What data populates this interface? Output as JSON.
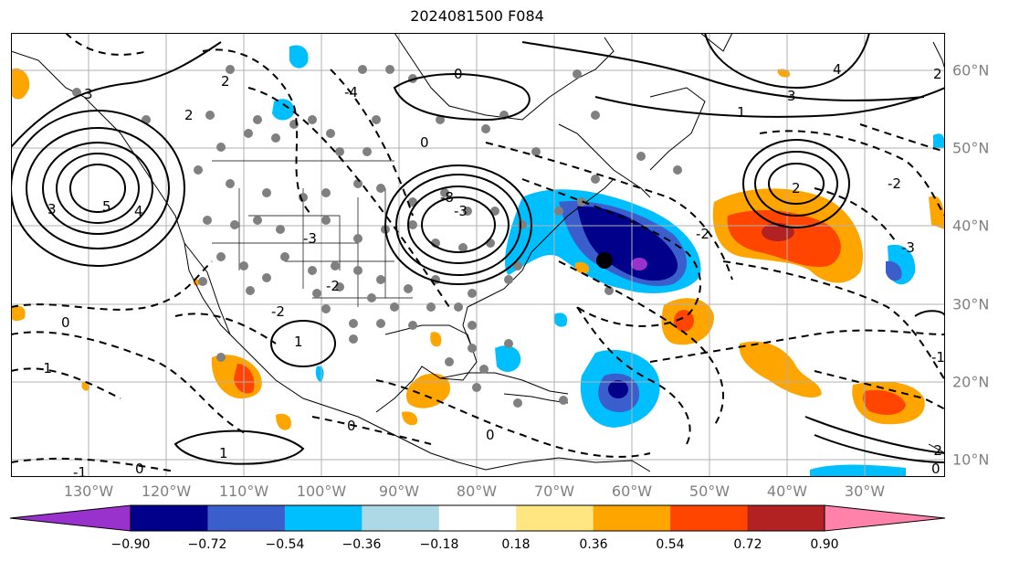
{
  "title": "2024081500 F084",
  "lon_labels": [
    "130°W",
    "120°W",
    "110°W",
    "100°W",
    "90°W",
    "80°W",
    "70°W",
    "60°W",
    "50°W",
    "40°W",
    "30°W"
  ],
  "lat_labels": [
    "60°N",
    "50°N",
    "40°N",
    "30°N",
    "20°N",
    "10°N"
  ],
  "colorbar": {
    "ticks": [
      "−0.90",
      "−0.72",
      "−0.54",
      "−0.36",
      "−0.18",
      "0.18",
      "0.36",
      "0.54",
      "0.72",
      "0.90"
    ],
    "colors": [
      "#9932cc",
      "#00008b",
      "#3a5fcd",
      "#00bfff",
      "#add8e6",
      "#ffffff",
      "#ffe680",
      "#ffa500",
      "#ff4500",
      "#b22222",
      "#ff82ab"
    ]
  },
  "contour_labels": [
    "5",
    "4",
    "3",
    "2",
    "1",
    "0",
    "-1",
    "-2",
    "-3",
    "-4",
    "-5",
    "-8"
  ],
  "colors": {
    "map_lines": "#000000",
    "grid": "#b0b0b0",
    "axis_labels": "#808080",
    "stations": "#808080"
  }
}
